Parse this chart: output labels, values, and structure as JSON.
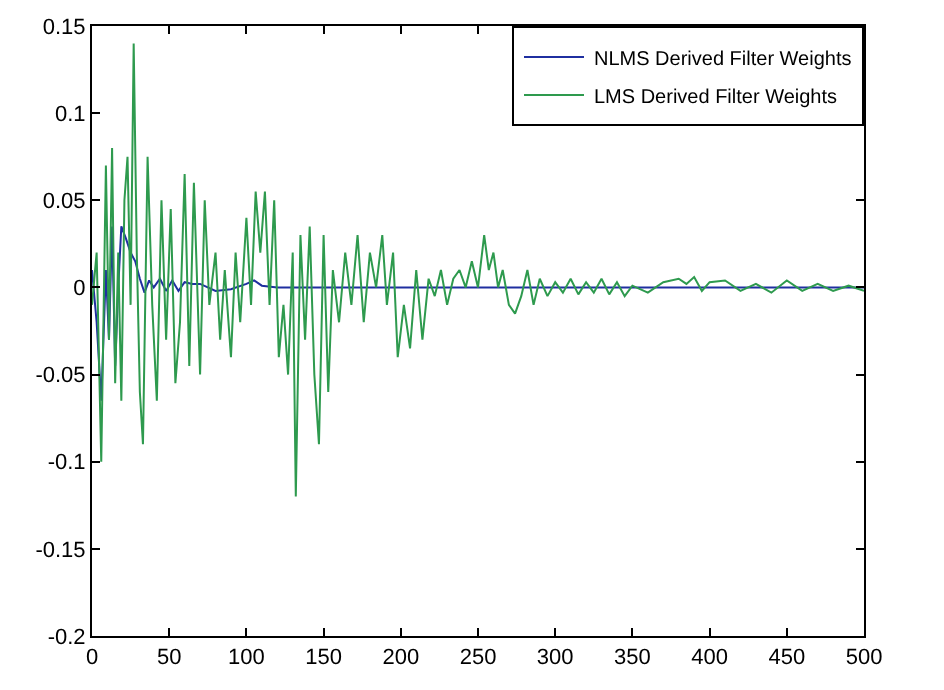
{
  "chart_data": {
    "type": "line",
    "xlim": [
      0,
      500
    ],
    "ylim": [
      -0.2,
      0.15
    ],
    "xticks": [
      0,
      50,
      100,
      150,
      200,
      250,
      300,
      350,
      400,
      450,
      500
    ],
    "yticks": [
      -0.2,
      -0.15,
      -0.1,
      -0.05,
      0,
      0.05,
      0.1,
      0.15
    ],
    "grid": false,
    "legend": "top right",
    "marker": "none",
    "line_style": "solid",
    "series": [
      {
        "name": "NLMS Derived Filter Weights",
        "color": "#1f2fa0",
        "x": [
          0,
          3,
          6,
          9,
          11,
          13,
          15,
          17,
          19,
          22,
          25,
          28,
          31,
          34,
          37,
          40,
          44,
          48,
          52,
          56,
          60,
          65,
          70,
          75,
          80,
          90,
          100,
          105,
          110,
          120,
          500
        ],
        "values": [
          0.01,
          -0.02,
          -0.065,
          0.01,
          -0.03,
          0.035,
          -0.045,
          0,
          0.035,
          0.028,
          0.02,
          0.015,
          0.005,
          -0.003,
          0.004,
          0,
          0.005,
          -0.002,
          0.004,
          -0.002,
          0.003,
          0.002,
          0.002,
          0,
          -0.002,
          -0.001,
          0.002,
          0.004,
          0.001,
          0,
          0
        ]
      },
      {
        "name": "LMS Derived Filter Weights",
        "color": "#2e9a4e",
        "x": [
          0,
          3,
          6,
          9,
          11,
          13,
          15,
          17,
          19,
          21,
          23,
          25,
          27,
          29,
          31,
          33,
          36,
          39,
          42,
          45,
          48,
          51,
          54,
          57,
          60,
          63,
          66,
          70,
          73,
          76,
          80,
          83,
          86,
          90,
          93,
          96,
          100,
          103,
          106,
          109,
          112,
          115,
          118,
          121,
          124,
          127,
          130,
          132,
          135,
          138,
          141,
          144,
          147,
          150,
          153,
          156,
          160,
          164,
          168,
          172,
          176,
          180,
          184,
          188,
          191,
          195,
          198,
          202,
          206,
          210,
          214,
          218,
          222,
          226,
          230,
          234,
          238,
          242,
          246,
          250,
          254,
          257,
          260,
          263,
          266,
          270,
          274,
          278,
          282,
          286,
          290,
          295,
          300,
          305,
          310,
          315,
          320,
          325,
          330,
          335,
          340,
          345,
          350,
          360,
          370,
          380,
          385,
          390,
          395,
          400,
          410,
          420,
          430,
          440,
          450,
          460,
          470,
          480,
          490,
          500
        ],
        "values": [
          -0.01,
          0.02,
          -0.1,
          0.07,
          -0.03,
          0.08,
          -0.055,
          0.02,
          -0.065,
          0.05,
          0.075,
          -0.01,
          0.14,
          0.02,
          -0.06,
          -0.09,
          0.075,
          -0.01,
          -0.065,
          0.05,
          -0.03,
          0.045,
          -0.055,
          -0.02,
          0.065,
          -0.045,
          0.06,
          -0.05,
          0.05,
          -0.01,
          0.02,
          -0.03,
          0.01,
          -0.04,
          0.02,
          -0.02,
          0.04,
          -0.01,
          0.055,
          0.02,
          0.055,
          -0.01,
          0.05,
          -0.04,
          -0.01,
          -0.05,
          0.02,
          -0.12,
          0.03,
          -0.03,
          0.035,
          -0.05,
          -0.09,
          0.03,
          -0.06,
          0.01,
          -0.02,
          0.02,
          -0.01,
          0.03,
          -0.02,
          0.02,
          0,
          0.03,
          -0.01,
          0.02,
          -0.04,
          -0.01,
          -0.035,
          0.01,
          -0.03,
          0.005,
          -0.005,
          0.01,
          -0.01,
          0.005,
          0.01,
          0,
          0.015,
          0,
          0.03,
          0.01,
          0.02,
          0,
          0.01,
          -0.01,
          -0.015,
          -0.005,
          0.01,
          -0.01,
          0.005,
          -0.005,
          0.003,
          -0.003,
          0.005,
          -0.004,
          0.003,
          -0.003,
          0.005,
          -0.004,
          0.003,
          -0.005,
          0.001,
          -0.003,
          0.003,
          0.005,
          0.002,
          0.006,
          -0.002,
          0.003,
          0.004,
          -0.002,
          0.002,
          -0.003,
          0.004,
          -0.002,
          0.002,
          -0.002,
          0.001,
          -0.002
        ]
      }
    ]
  }
}
